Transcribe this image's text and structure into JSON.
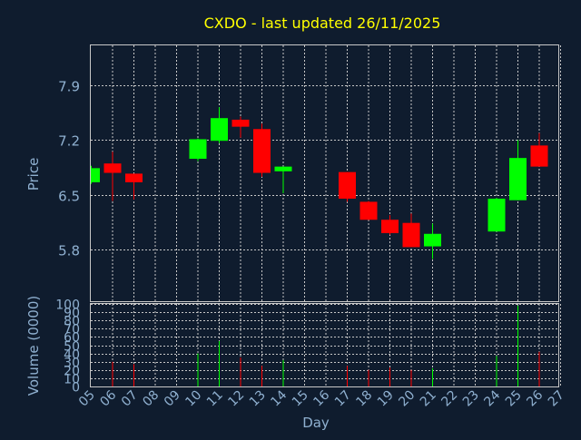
{
  "chart_data": {
    "type": "candlestick",
    "title": "CXDO - last updated 26/11/2025",
    "price_panel": {
      "ylabel": "Price",
      "ylim": [
        5.4,
        7.9
      ],
      "yticks": [
        "7.9",
        "7.2",
        "6.5",
        "5.8"
      ],
      "grid": true
    },
    "volume_panel": {
      "ylabel": "Volume (0000)",
      "ylim": [
        0,
        100
      ],
      "yticks": [
        "100",
        "90",
        "80",
        "70",
        "60",
        "50",
        "40",
        "30",
        "20",
        "10",
        "0"
      ],
      "grid": true
    },
    "xlabel": "Day",
    "x_tick_labels": [
      "05",
      "06",
      "07",
      "08",
      "09",
      "10",
      "11",
      "12",
      "13",
      "14",
      "15",
      "16",
      "17",
      "18",
      "19",
      "20",
      "21",
      "22",
      "23",
      "24",
      "25",
      "26",
      "27"
    ],
    "candles": [
      {
        "day": "05",
        "open": 6.66,
        "high": 6.87,
        "low": 6.64,
        "close": 6.84,
        "volume": 0
      },
      {
        "day": "06",
        "open": 6.9,
        "high": 7.05,
        "low": 6.42,
        "close": 6.78,
        "volume": 30
      },
      {
        "day": "07",
        "open": 6.77,
        "high": 6.77,
        "low": 6.44,
        "close": 6.66,
        "volume": 27
      },
      {
        "day": "10",
        "open": 6.96,
        "high": 7.22,
        "low": 6.93,
        "close": 7.21,
        "volume": 40
      },
      {
        "day": "11",
        "open": 7.19,
        "high": 7.62,
        "low": 7.16,
        "close": 7.48,
        "volume": 55
      },
      {
        "day": "12",
        "open": 7.46,
        "high": 7.5,
        "low": 7.23,
        "close": 7.37,
        "volume": 35
      },
      {
        "day": "13",
        "open": 7.34,
        "high": 7.41,
        "low": 6.73,
        "close": 6.78,
        "volume": 25
      },
      {
        "day": "14",
        "open": 6.8,
        "high": 6.86,
        "low": 6.52,
        "close": 6.86,
        "volume": 32
      },
      {
        "day": "17",
        "open": 6.79,
        "high": 6.79,
        "low": 6.41,
        "close": 6.45,
        "volume": 25
      },
      {
        "day": "18",
        "open": 6.41,
        "high": 6.42,
        "low": 6.18,
        "close": 6.18,
        "volume": 20
      },
      {
        "day": "19",
        "open": 6.18,
        "high": 6.24,
        "low": 5.99,
        "close": 6.01,
        "volume": 23
      },
      {
        "day": "20",
        "open": 6.14,
        "high": 6.26,
        "low": 5.83,
        "close": 5.83,
        "volume": 20
      },
      {
        "day": "21",
        "open": 5.84,
        "high": 6.13,
        "low": 5.68,
        "close": 6.0,
        "volume": 22
      },
      {
        "day": "24",
        "open": 6.03,
        "high": 6.46,
        "low": 6.03,
        "close": 6.45,
        "volume": 37
      },
      {
        "day": "25",
        "open": 6.43,
        "high": 7.2,
        "low": 6.43,
        "close": 6.97,
        "volume": 98
      },
      {
        "day": "26",
        "open": 7.13,
        "high": 7.29,
        "low": 6.86,
        "close": 6.86,
        "volume": 42
      }
    ],
    "colors": {
      "up": "#00ff00",
      "down": "#ff0000",
      "background": "#0f1c2e",
      "grid": "#c8c8c8",
      "axis_text": "#8fb0d0",
      "title_text": "#ffff00"
    }
  }
}
